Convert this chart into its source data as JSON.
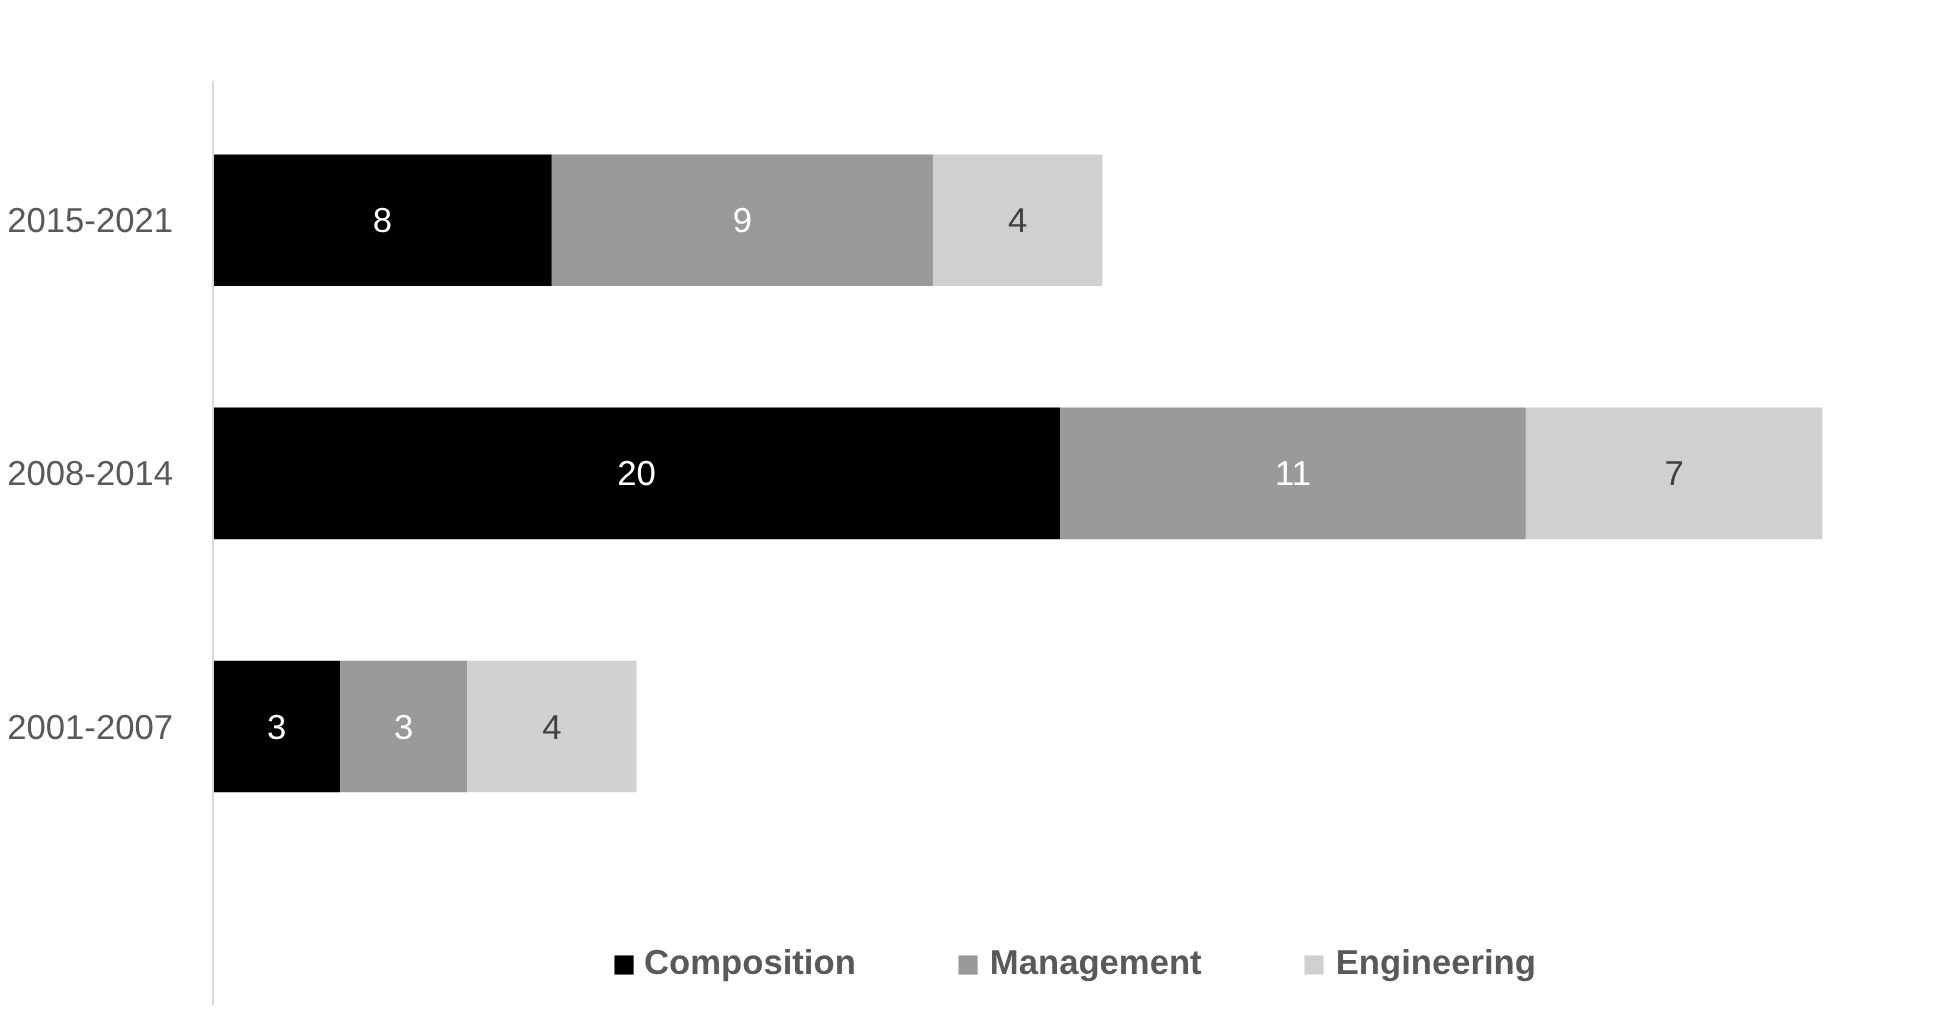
{
  "chart_data": {
    "type": "bar",
    "orientation": "horizontal",
    "stacked": true,
    "categories": [
      "2015-2021",
      "2008-2014",
      "2001-2007"
    ],
    "series": [
      {
        "name": "Composition",
        "color": "#000000",
        "values": [
          8,
          20,
          3
        ]
      },
      {
        "name": "Management",
        "color": "#999999",
        "values": [
          9,
          11,
          3
        ]
      },
      {
        "name": "Engineering",
        "color": "#d0d0d0",
        "values": [
          4,
          7,
          4
        ]
      }
    ],
    "data_labels": true,
    "grid": false,
    "legend": "bottom"
  }
}
